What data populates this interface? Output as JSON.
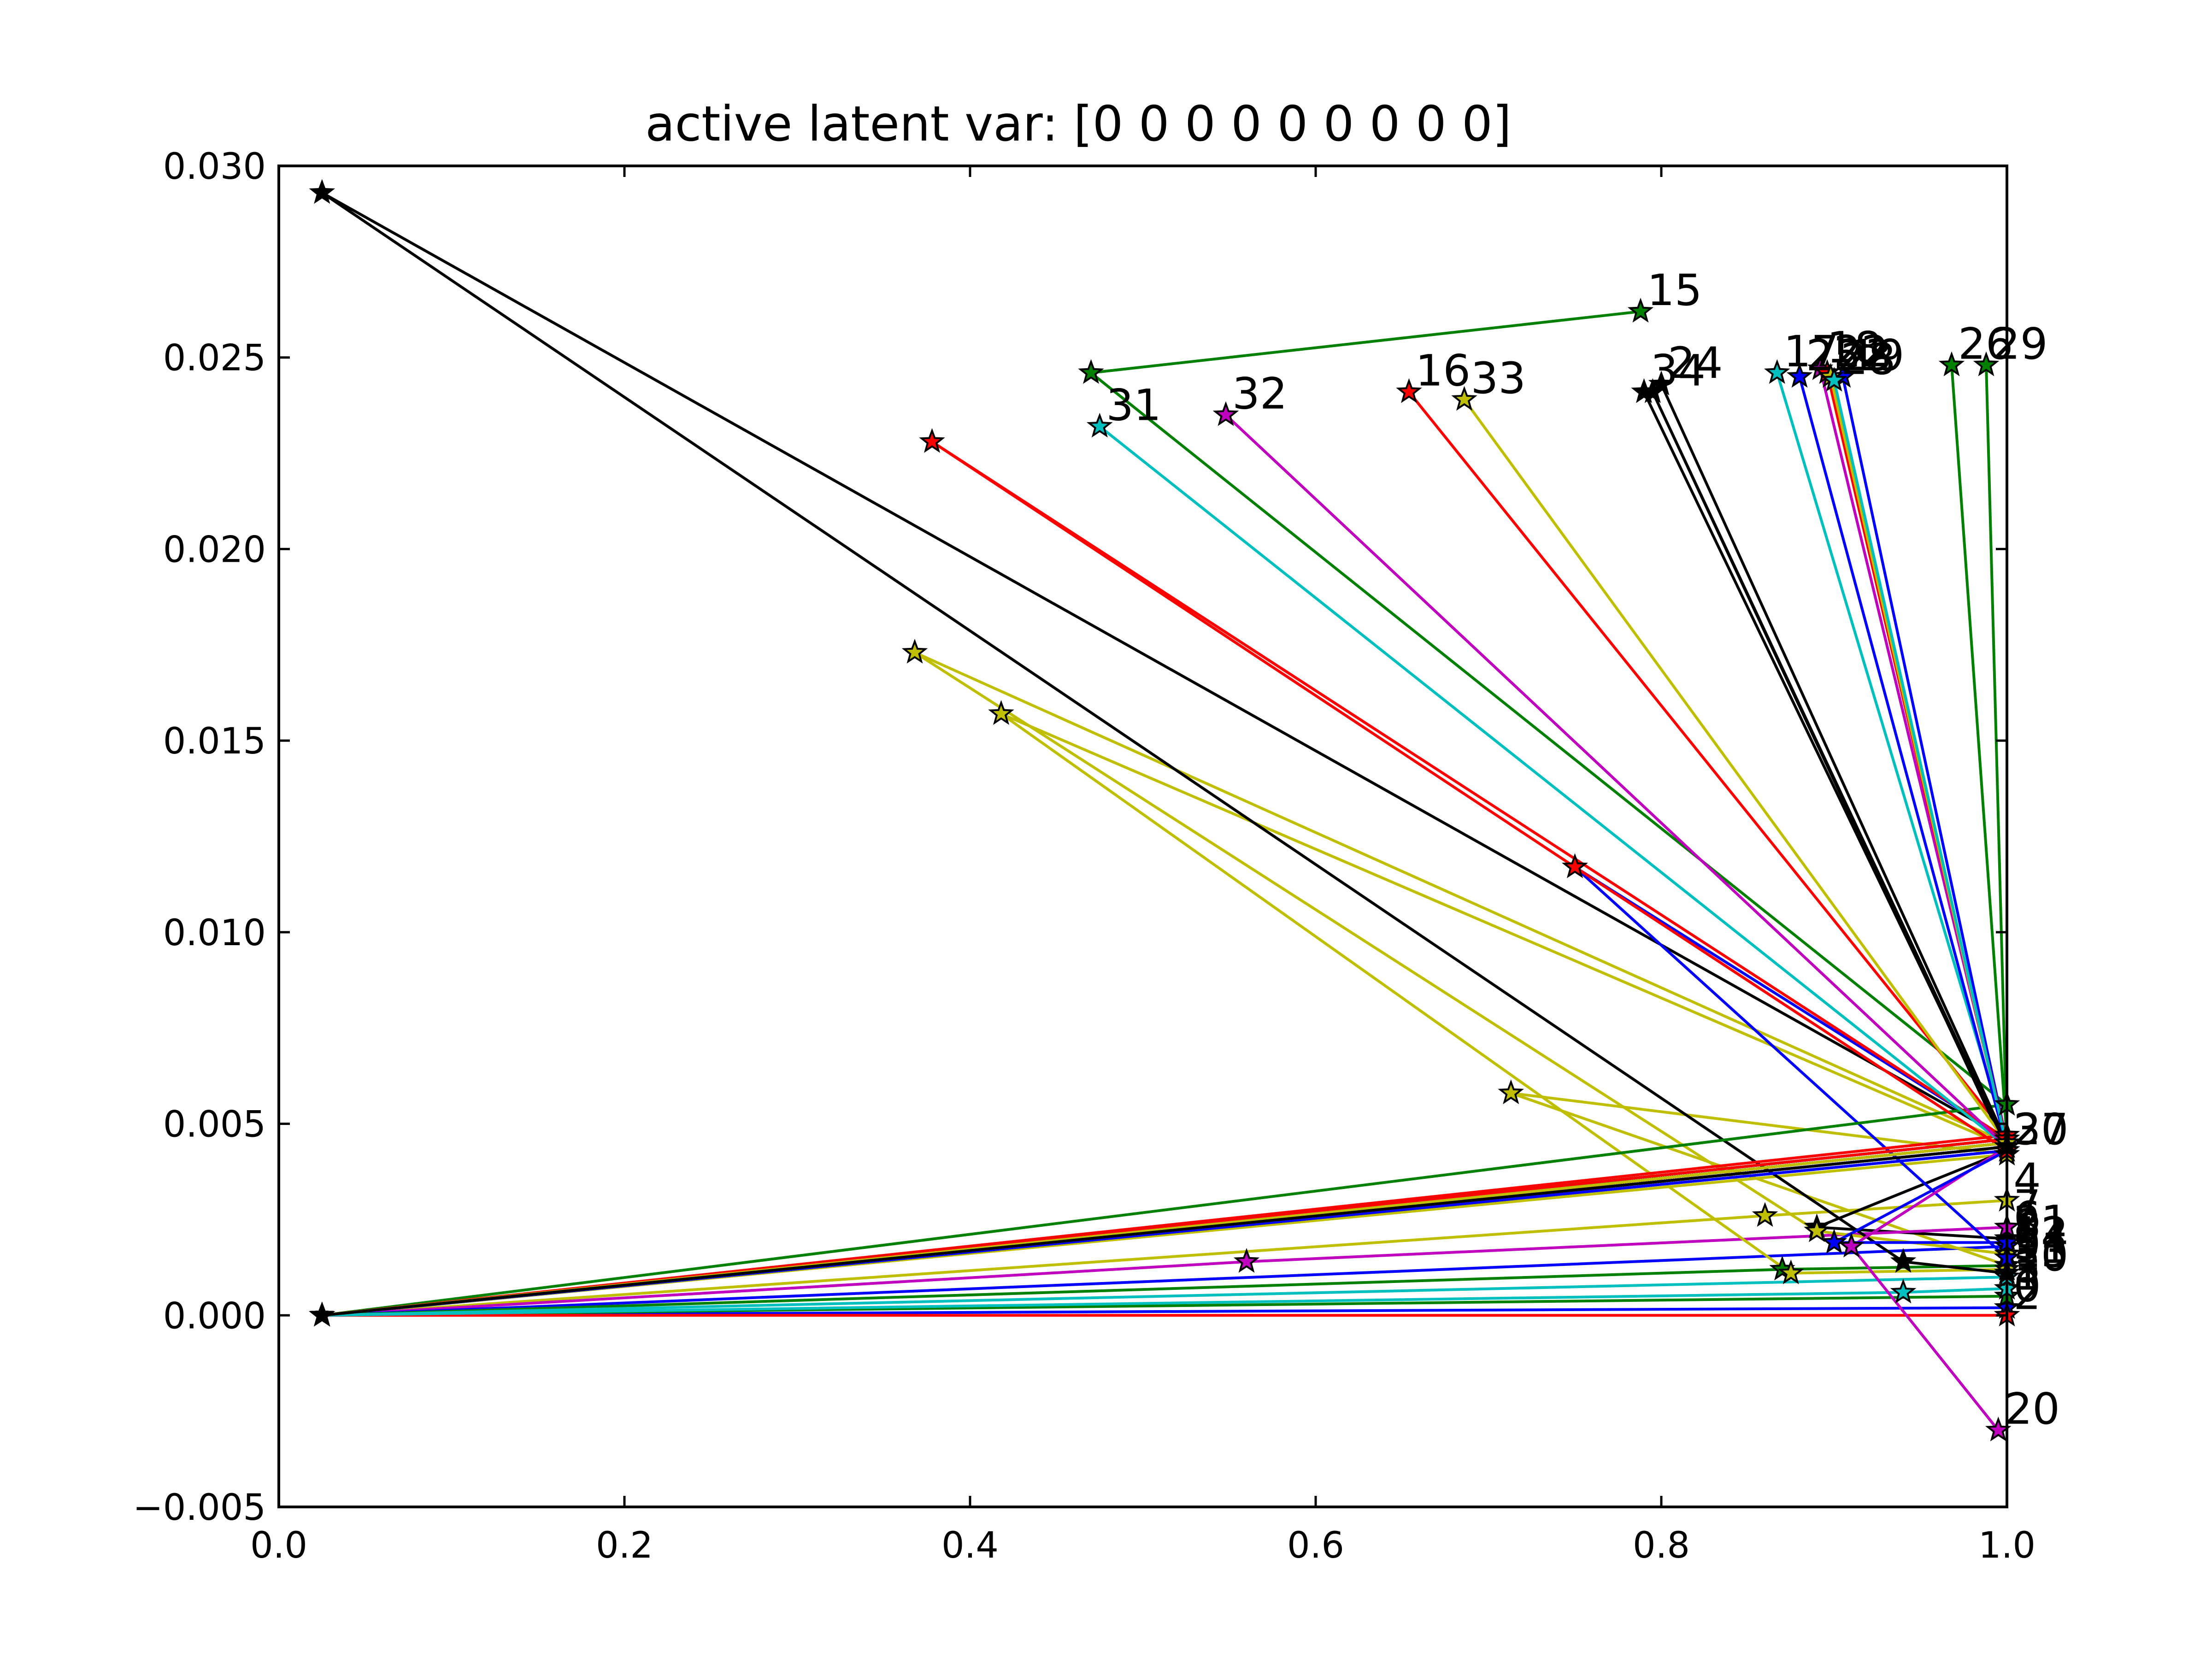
{
  "chart_data": {
    "type": "line",
    "title": "active latent var: [0 0 0 0 0 0 0 0 0]",
    "xlabel": "",
    "ylabel": "",
    "xlim": [
      0.0,
      1.0
    ],
    "ylim": [
      -0.005,
      0.03
    ],
    "x_ticks": [
      "0.0",
      "0.2",
      "0.4",
      "0.6",
      "0.8",
      "1.0"
    ],
    "y_ticks": [
      "−0.005",
      "0.000",
      "0.005",
      "0.010",
      "0.015",
      "0.020",
      "0.025",
      "0.030"
    ],
    "grid": false,
    "marker": "star",
    "series": [
      {
        "label": "0",
        "color": "#0000ff",
        "points": [
          [
            0.025,
            0.0
          ],
          [
            1.0,
            0.0002
          ]
        ]
      },
      {
        "label": "1",
        "color": "#008000",
        "points": [
          [
            0.025,
            0.0
          ],
          [
            1.0,
            0.0005
          ]
        ]
      },
      {
        "label": "2",
        "color": "#ff0000",
        "points": [
          [
            0.025,
            0.0
          ],
          [
            1.0,
            0.0
          ]
        ]
      },
      {
        "label": "3",
        "color": "#00bfbf",
        "points": [
          [
            0.025,
            0.0
          ],
          [
            0.94,
            0.0006
          ],
          [
            1.0,
            0.0007
          ]
        ]
      },
      {
        "label": "4",
        "color": "#bfbf00",
        "points": [
          [
            0.025,
            0.0
          ],
          [
            0.86,
            0.0026
          ],
          [
            1.0,
            0.003
          ]
        ]
      },
      {
        "label": "5",
        "color": "#bfbf00",
        "points": [
          [
            0.025,
            0.0
          ],
          [
            1.0,
            0.0042
          ],
          [
            0.713,
            0.0058
          ],
          [
            1.0,
            0.0013
          ]
        ]
      },
      {
        "label": "6",
        "color": "#000000",
        "points": [
          [
            0.025,
            0.0
          ],
          [
            1.0,
            0.0043
          ],
          [
            0.89,
            0.0023
          ],
          [
            1.0,
            0.002
          ]
        ]
      },
      {
        "label": "7",
        "color": "#bf00bf",
        "points": [
          [
            0.025,
            0.0
          ],
          [
            0.56,
            0.0014
          ],
          [
            1.0,
            0.0023
          ]
        ]
      },
      {
        "label": "8",
        "color": "#0000ff",
        "points": [
          [
            0.025,
            0.0
          ],
          [
            1.0,
            0.0018
          ]
        ]
      },
      {
        "label": "9",
        "color": "#008000",
        "points": [
          [
            0.025,
            0.0
          ],
          [
            0.87,
            0.0012
          ],
          [
            1.0,
            0.0013
          ]
        ]
      },
      {
        "label": "10",
        "color": "#00bfbf",
        "points": [
          [
            0.025,
            0.0
          ],
          [
            1.0,
            0.001
          ]
        ]
      },
      {
        "label": "11",
        "color": "#bfbf00",
        "points": [
          [
            0.025,
            0.0
          ],
          [
            1.0,
            0.0044
          ],
          [
            0.418,
            0.0157
          ],
          [
            0.875,
            0.0011
          ],
          [
            1.0,
            0.0012
          ]
        ]
      },
      {
        "label": "12",
        "color": "#bfbf00",
        "points": [
          [
            0.025,
            0.0
          ],
          [
            1.0,
            0.0045
          ],
          [
            0.368,
            0.0173
          ],
          [
            0.89,
            0.0022
          ],
          [
            1.0,
            0.0016
          ]
        ]
      },
      {
        "label": "13",
        "color": "#000000",
        "points": [
          [
            0.025,
            0.0
          ],
          [
            1.0,
            0.0046
          ],
          [
            0.025,
            0.0293
          ],
          [
            0.94,
            0.0014
          ],
          [
            1.0,
            0.0011
          ]
        ]
      },
      {
        "label": "14",
        "color": "#0000ff",
        "points": [
          [
            0.025,
            0.0
          ],
          [
            1.0,
            0.0046
          ],
          [
            0.75,
            0.0117
          ],
          [
            1.0,
            0.0015
          ]
        ]
      },
      {
        "label": "15",
        "color": "#008000",
        "points": [
          [
            0.025,
            0.0
          ],
          [
            1.0,
            0.0055
          ],
          [
            0.47,
            0.0246
          ],
          [
            0.788,
            0.0262
          ]
        ]
      },
      {
        "label": "16",
        "color": "#ff0000",
        "points": [
          [
            0.025,
            0.0
          ],
          [
            1.0,
            0.0047
          ],
          [
            0.654,
            0.0241
          ]
        ]
      },
      {
        "label": "17",
        "color": "#00bfbf",
        "points": [
          [
            0.025,
            0.0
          ],
          [
            1.0,
            0.0046
          ],
          [
            0.867,
            0.0246
          ]
        ]
      },
      {
        "label": "18",
        "color": "#bf00bf",
        "points": [
          [
            0.025,
            0.0
          ],
          [
            1.0,
            0.0045
          ],
          [
            0.892,
            0.0247
          ]
        ]
      },
      {
        "label": "19",
        "color": "#0000ff",
        "points": [
          [
            0.025,
            0.0
          ],
          [
            1.0,
            0.0045
          ],
          [
            0.905,
            0.0245
          ]
        ]
      },
      {
        "label": "20",
        "color": "#bf00bf",
        "points": [
          [
            0.025,
            0.0
          ],
          [
            1.0,
            0.0044
          ],
          [
            0.91,
            0.0018
          ],
          [
            0.995,
            -0.003
          ]
        ]
      },
      {
        "label": "21",
        "color": "#0000ff",
        "points": [
          [
            0.025,
            0.0
          ],
          [
            1.0,
            0.0043
          ],
          [
            0.9,
            0.0019
          ],
          [
            1.0,
            0.0019
          ]
        ]
      },
      {
        "label": "22",
        "color": "#ff0000",
        "points": [
          [
            0.025,
            0.0
          ],
          [
            1.0,
            0.0045
          ],
          [
            0.896,
            0.0246
          ]
        ]
      },
      {
        "label": "23",
        "color": "#bfbf00",
        "points": [
          [
            0.025,
            0.0
          ],
          [
            1.0,
            0.0044
          ],
          [
            0.898,
            0.0245
          ]
        ]
      },
      {
        "label": "24",
        "color": "#000000",
        "points": [
          [
            0.025,
            0.0
          ],
          [
            1.0,
            0.0045
          ],
          [
            0.8,
            0.0243
          ]
        ]
      },
      {
        "label": "25",
        "color": "#0000ff",
        "points": [
          [
            0.025,
            0.0
          ],
          [
            1.0,
            0.0044
          ],
          [
            0.88,
            0.0245
          ]
        ]
      },
      {
        "label": "26",
        "color": "#008000",
        "points": [
          [
            0.025,
            0.0
          ],
          [
            1.0,
            0.0046
          ],
          [
            0.968,
            0.0248
          ]
        ]
      },
      {
        "label": "27",
        "color": "#000000",
        "points": [
          [
            0.025,
            0.0
          ],
          [
            1.0,
            0.0044
          ],
          [
            0.795,
            0.0241
          ],
          [
            1.0,
            0.0043
          ]
        ]
      },
      {
        "label": "28",
        "color": "#00bfbf",
        "points": [
          [
            0.025,
            0.0
          ],
          [
            1.0,
            0.0044
          ],
          [
            0.9,
            0.0244
          ]
        ]
      },
      {
        "label": "29",
        "color": "#008000",
        "points": [
          [
            0.025,
            0.0
          ],
          [
            1.0,
            0.0045
          ],
          [
            0.988,
            0.0248
          ]
        ]
      },
      {
        "label": "30",
        "color": "#ff0000",
        "points": [
          [
            0.025,
            0.0
          ],
          [
            1.0,
            0.0046
          ],
          [
            0.378,
            0.0228
          ],
          [
            0.75,
            0.0117
          ],
          [
            1.0,
            0.0043
          ]
        ]
      },
      {
        "label": "31",
        "color": "#00bfbf",
        "points": [
          [
            0.025,
            0.0
          ],
          [
            1.0,
            0.0044
          ],
          [
            0.475,
            0.0232
          ]
        ]
      },
      {
        "label": "32",
        "color": "#bf00bf",
        "points": [
          [
            0.025,
            0.0
          ],
          [
            1.0,
            0.0044
          ],
          [
            0.548,
            0.0235
          ]
        ]
      },
      {
        "label": "33",
        "color": "#bfbf00",
        "points": [
          [
            0.025,
            0.0
          ],
          [
            1.0,
            0.0045
          ],
          [
            0.686,
            0.0239
          ]
        ]
      },
      {
        "label": "34",
        "color": "#000000",
        "points": [
          [
            0.025,
            0.0
          ],
          [
            1.0,
            0.0044
          ],
          [
            0.79,
            0.0241
          ]
        ]
      }
    ]
  }
}
